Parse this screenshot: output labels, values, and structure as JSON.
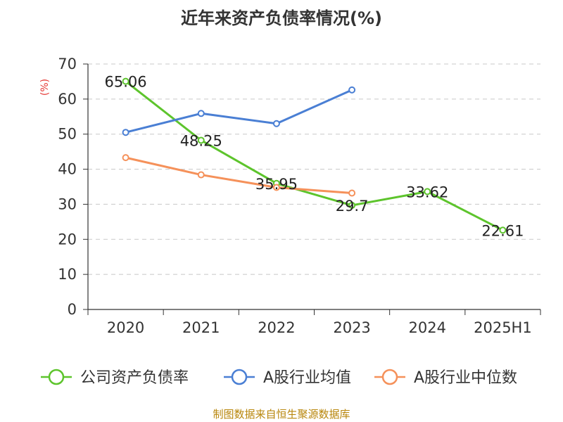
{
  "title": "近年来资产负债率情况(%)",
  "source": "制图数据来自恒生聚源数据库",
  "chart_data": {
    "type": "line",
    "title": "近年来资产负债率情况(%)",
    "ylabel": "(%)",
    "ylim": [
      0,
      70
    ],
    "yticks": [
      0,
      10,
      20,
      30,
      40,
      50,
      60,
      70
    ],
    "categories": [
      "2020",
      "2021",
      "2022",
      "2023",
      "2024",
      "2025H1"
    ],
    "grid": "horizontal dashed",
    "legend_position": "bottom",
    "series": [
      {
        "name": "公司资产负债率",
        "color": "#5dc42c",
        "values": [
          65.06,
          48.25,
          35.95,
          29.7,
          33.62,
          22.61
        ],
        "labels": [
          "65.06",
          "48.25",
          "35.95",
          "29.7",
          "33.62",
          "22.61"
        ]
      },
      {
        "name": "A股行业均值",
        "color": "#4a7fd4",
        "values": [
          50.5,
          55.9,
          53.0,
          62.6,
          null,
          null
        ]
      },
      {
        "name": "A股行业中位数",
        "color": "#f5915a",
        "values": [
          43.3,
          38.4,
          34.8,
          33.2,
          null,
          null
        ]
      }
    ]
  }
}
